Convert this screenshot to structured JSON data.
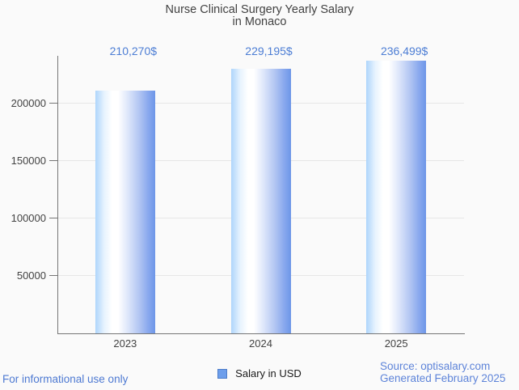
{
  "title": {
    "line1": "Nurse Clinical Surgery Yearly Salary",
    "line2": "in Monaco"
  },
  "legend": {
    "label": "Salary in USD"
  },
  "footer": {
    "disclaimer": "For informational use only",
    "source": "Source: optisalary.com",
    "generated": "Generated February 2025"
  },
  "colors": {
    "background": "#fafafa",
    "axis_text": "#424242",
    "grid": "#e6e6e6",
    "axis_line": "#757575",
    "annotation_text": "#4c7dd4",
    "footer_text": "#4d79d2",
    "source_text": "#5e84d9",
    "legend_swatch": "#6d9eeb",
    "bar_gradient": [
      "#aed5fb",
      "#ffffff",
      "#6d96e8"
    ]
  },
  "chart_data": {
    "type": "bar",
    "title": "Nurse Clinical Surgery Yearly Salary in Monaco",
    "categories": [
      "2023",
      "2024",
      "2025"
    ],
    "series": [
      {
        "name": "Salary in USD",
        "values": [
          210270,
          229195,
          236499
        ]
      }
    ],
    "annotations": [
      "210,270$",
      "229,195$",
      "236,499$"
    ],
    "xlabel": "",
    "ylabel": "",
    "ylim": [
      0,
      240000
    ],
    "yticks": [
      50000,
      100000,
      150000,
      200000
    ],
    "grid": "horizontal",
    "legend_position": "bottom"
  }
}
